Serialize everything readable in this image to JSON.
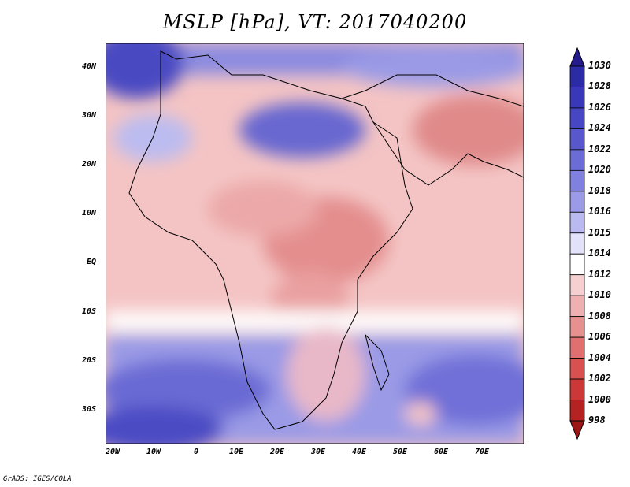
{
  "title": "MSLP [hPa], VT: 2017040200",
  "credit": "GrADS: IGES/COLA",
  "y_ticks": [
    "40N",
    "30N",
    "20N",
    "10N",
    "EQ",
    "10S",
    "20S",
    "30S"
  ],
  "x_ticks": [
    "20W",
    "10W",
    "0",
    "10E",
    "20E",
    "30E",
    "40E",
    "50E",
    "60E",
    "70E"
  ],
  "colorbar": {
    "labels": [
      "1030",
      "1028",
      "1026",
      "1024",
      "1022",
      "1020",
      "1018",
      "1016",
      "1015",
      "1014",
      "1012",
      "1010",
      "1008",
      "1006",
      "1004",
      "1002",
      "1000",
      "998"
    ],
    "colors": [
      "#241a8c",
      "#2b2ba6",
      "#3838b8",
      "#4747c4",
      "#5858cc",
      "#6c6cd6",
      "#8080de",
      "#9a9ae6",
      "#babaf0",
      "#e2e2fa",
      "#ffffff",
      "#f6d0d0",
      "#eeb0b0",
      "#e69090",
      "#e07070",
      "#d85050",
      "#cc3838",
      "#b52222",
      "#9c1616"
    ]
  },
  "map_colors": {
    "low": "#e08a8a",
    "mid": "#f4c4c4",
    "neutral": "#ffffff",
    "high": "#8a8ae0",
    "very_high": "#4545bf"
  }
}
